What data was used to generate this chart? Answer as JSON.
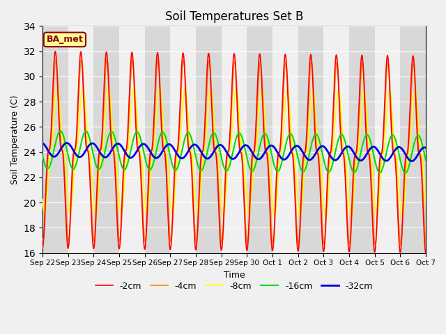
{
  "title": "Soil Temperatures Set B",
  "xlabel": "Time",
  "ylabel": "Soil Temperature (C)",
  "ylim": [
    16,
    34
  ],
  "yticks": [
    16,
    18,
    20,
    22,
    24,
    26,
    28,
    30,
    32,
    34
  ],
  "background_color": "#f0f0f0",
  "plot_bg_light": "#f0f0f0",
  "plot_bg_dark": "#d8d8d8",
  "grid_color": "#ffffff",
  "annotation_text": "BA_met",
  "annotation_bg": "#ffff99",
  "annotation_border": "#8B0000",
  "legend_entries": [
    "-2cm",
    "-4cm",
    "-8cm",
    "-16cm",
    "-32cm"
  ],
  "line_colors": [
    "#ff0000",
    "#ff8800",
    "#ffff00",
    "#00dd00",
    "#0000dd"
  ],
  "line_widths": [
    1.2,
    1.2,
    1.2,
    1.5,
    2.0
  ],
  "xtick_labels": [
    "Sep 22",
    "Sep 23",
    "Sep 24",
    "Sep 25",
    "Sep 26",
    "Sep 27",
    "Sep 28",
    "Sep 29",
    "Sep 30",
    "Oct 1",
    "Oct 2",
    "Oct 3",
    "Oct 4",
    "Oct 5",
    "Oct 6",
    "Oct 7"
  ],
  "n_days": 15,
  "samples_per_day": 96,
  "mean_temp": 24.2,
  "trend_per_day": -0.025
}
